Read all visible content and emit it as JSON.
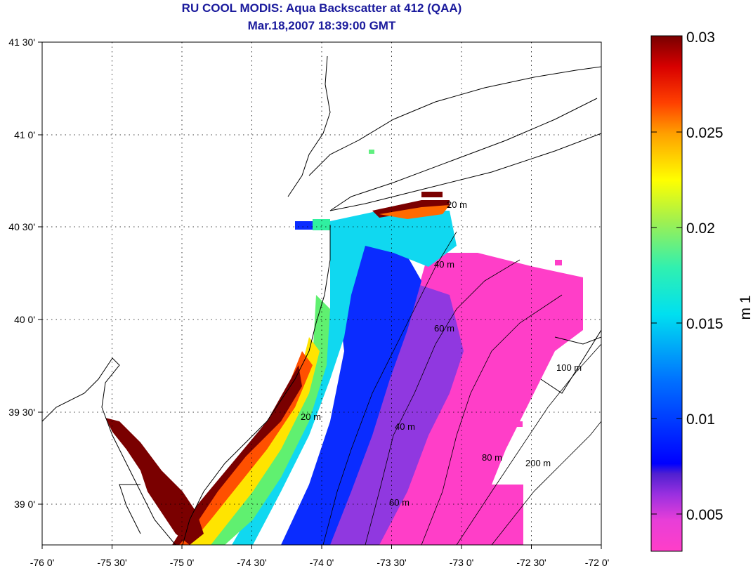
{
  "title": {
    "line1": "RU COOL MODIS: Aqua Backscatter at 412 (QAA)",
    "line2": "Mar.18,2007 18:39:00 GMT"
  },
  "axes": {
    "x_ticks": [
      "-76 0'",
      "-75 30'",
      "-75 0'",
      "-74 30'",
      "-74 0'",
      "-73 30'",
      "-73 0'",
      "-72 30'",
      "-72 0'"
    ],
    "y_ticks": [
      "41 30'",
      "41 0'",
      "40 30'",
      "40 0'",
      "39 30'",
      "39 0'"
    ],
    "x_range": [
      -76.0,
      -72.0
    ],
    "y_range": [
      38.78,
      41.5
    ],
    "grid": "dotted"
  },
  "colorbar": {
    "ticks": [
      "0.03",
      "0.025",
      "0.02",
      "0.015",
      "0.01",
      "0.005"
    ],
    "range": [
      0.003,
      0.03
    ],
    "unit": "m 1",
    "colormap": [
      "#ff3ec8",
      "#c040e8",
      "#6a2ad8",
      "#0000ff",
      "#0088ff",
      "#00e8f0",
      "#40f0a0",
      "#c0f040",
      "#ffff00",
      "#ffb000",
      "#ff5000",
      "#e80000",
      "#7a0000"
    ]
  },
  "isobaths": [
    "20 m",
    "40 m",
    "60 m",
    "100 m",
    "200 m",
    "20 m",
    "40 m",
    "60 m",
    "80 m"
  ],
  "colors": {
    "title": "#1a1a9c",
    "land_bg": "#ffffff",
    "coast": "#000000"
  }
}
